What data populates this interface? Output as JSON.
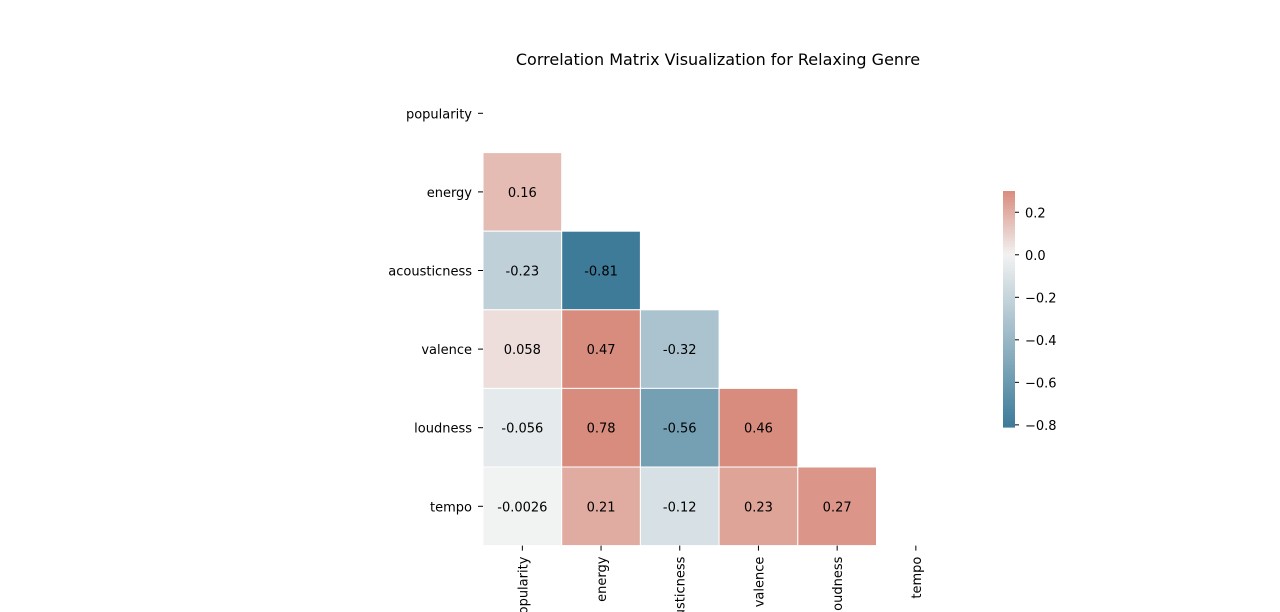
{
  "chart_data": {
    "type": "heatmap",
    "title": "Correlation Matrix Visualization for Relaxing Genre",
    "labels": [
      "popularity",
      "energy",
      "acousticness",
      "valence",
      "loudness",
      "tempo"
    ],
    "mask": "upper-triangle-including-diagonal",
    "values": [
      [
        null,
        null,
        null,
        null,
        null,
        null
      ],
      [
        0.16,
        null,
        null,
        null,
        null,
        null
      ],
      [
        -0.23,
        -0.81,
        null,
        null,
        null,
        null
      ],
      [
        0.058,
        0.47,
        -0.32,
        null,
        null,
        null
      ],
      [
        -0.056,
        0.78,
        -0.56,
        0.46,
        null,
        null
      ],
      [
        -0.0026,
        0.21,
        -0.12,
        0.23,
        0.27,
        null
      ]
    ],
    "value_labels": [
      [
        null,
        null,
        null,
        null,
        null,
        null
      ],
      [
        "0.16",
        null,
        null,
        null,
        null,
        null
      ],
      [
        "-0.23",
        "-0.81",
        null,
        null,
        null,
        null
      ],
      [
        "0.058",
        "0.47",
        "-0.32",
        null,
        null,
        null
      ],
      [
        "-0.056",
        "0.78",
        "-0.56",
        "0.46",
        null,
        null
      ],
      [
        "-0.0026",
        "0.21",
        "-0.12",
        "0.23",
        "0.27",
        null
      ]
    ],
    "colorbar": {
      "range": [
        -0.81,
        0.3
      ],
      "ticks": [
        0.2,
        0.0,
        -0.2,
        -0.4,
        -0.6,
        -0.8
      ],
      "tick_labels": [
        "0.2",
        "0.0",
        "−0.2",
        "−0.4",
        "−0.6",
        "−0.8"
      ],
      "placement": "right"
    },
    "colors": {
      "negative": "#3d7b99",
      "center": "#f2f2f2",
      "positive": "#d88c7d"
    }
  }
}
